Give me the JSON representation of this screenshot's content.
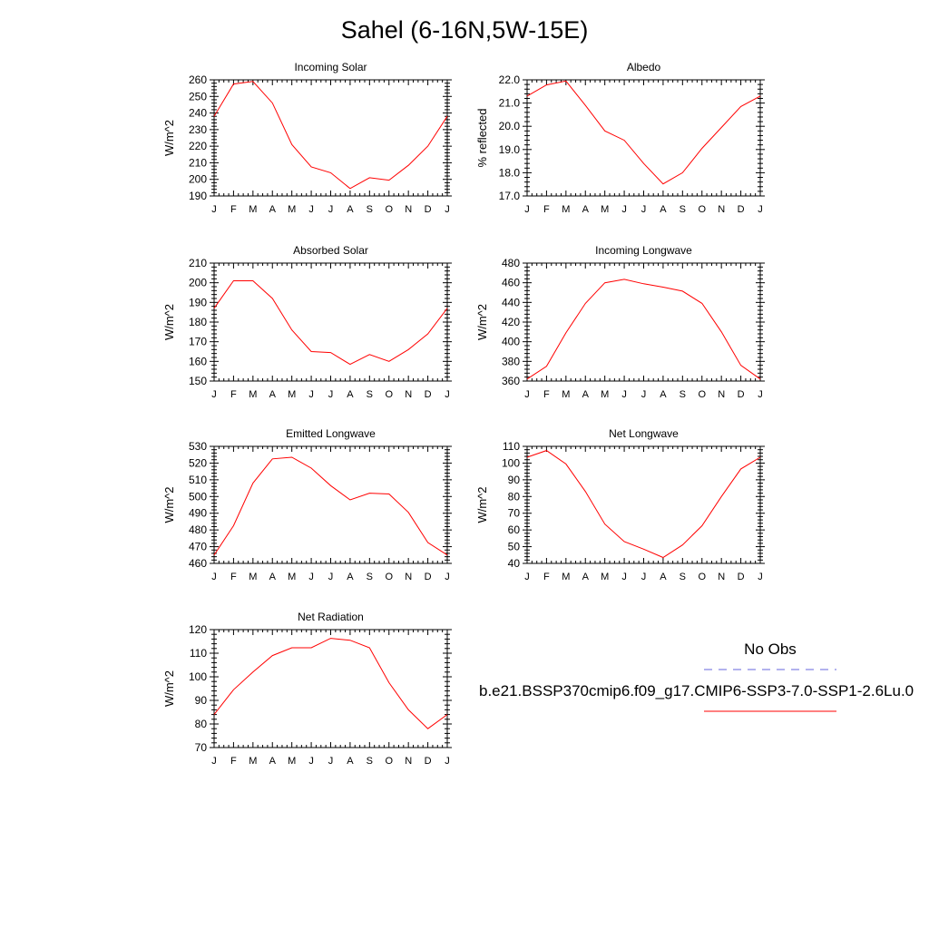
{
  "title": "Sahel (6-16N,5W-15E)",
  "legend": {
    "obs_label": "No Obs",
    "obs_color": "#6666dd",
    "model_label": "b.e21.BSSP370cmip6.f09_g17.CMIP6-SSP3-7.0-SSP1-2.6Lu.0",
    "model_color": "#ff0000"
  },
  "chart_data": [
    {
      "type": "line",
      "title": "Incoming Solar",
      "ylabel": "W/m^2",
      "categories": [
        "J",
        "F",
        "M",
        "A",
        "M",
        "J",
        "J",
        "A",
        "S",
        "O",
        "N",
        "D",
        "J"
      ],
      "ylim": [
        190,
        260
      ],
      "yticks": [
        "190",
        "200",
        "210",
        "220",
        "230",
        "240",
        "250",
        "260"
      ],
      "series": [
        {
          "values": [
            238,
            257.5,
            259,
            246,
            221,
            207.5,
            204,
            194.5,
            201,
            199.5,
            208.5,
            220,
            238
          ]
        }
      ]
    },
    {
      "type": "line",
      "title": "Albedo",
      "ylabel": "% reflected",
      "categories": [
        "J",
        "F",
        "M",
        "A",
        "M",
        "J",
        "J",
        "A",
        "S",
        "O",
        "N",
        "D",
        "J"
      ],
      "ylim": [
        17.0,
        22.0
      ],
      "yticks": [
        "17.0",
        "18.0",
        "19.0",
        "20.0",
        "21.0",
        "22.0"
      ],
      "series": [
        {
          "values": [
            21.3,
            21.78,
            21.95,
            20.9,
            19.8,
            19.4,
            18.4,
            17.52,
            18.0,
            19.05,
            19.95,
            20.85,
            21.3
          ]
        }
      ]
    },
    {
      "type": "line",
      "title": "Absorbed Solar",
      "ylabel": "W/m^2",
      "categories": [
        "J",
        "F",
        "M",
        "A",
        "M",
        "J",
        "J",
        "A",
        "S",
        "O",
        "N",
        "D",
        "J"
      ],
      "ylim": [
        150,
        210
      ],
      "yticks": [
        "150",
        "160",
        "170",
        "180",
        "190",
        "200",
        "210"
      ],
      "series": [
        {
          "values": [
            187,
            201,
            201,
            192,
            176,
            165,
            164.5,
            158.5,
            163.5,
            160,
            166,
            174,
            187
          ]
        }
      ]
    },
    {
      "type": "line",
      "title": "Incoming Longwave",
      "ylabel": "W/m^2",
      "categories": [
        "J",
        "F",
        "M",
        "A",
        "M",
        "J",
        "J",
        "A",
        "S",
        "O",
        "N",
        "D",
        "J"
      ],
      "ylim": [
        360,
        480
      ],
      "yticks": [
        "360",
        "380",
        "400",
        "420",
        "440",
        "460",
        "480"
      ],
      "series": [
        {
          "values": [
            362,
            375,
            409,
            439,
            460,
            463.5,
            459,
            455.5,
            451.5,
            439,
            410,
            376,
            362
          ]
        }
      ]
    },
    {
      "type": "line",
      "title": "Emitted Longwave",
      "ylabel": "W/m^2",
      "categories": [
        "J",
        "F",
        "M",
        "A",
        "M",
        "J",
        "J",
        "A",
        "S",
        "O",
        "N",
        "D",
        "J"
      ],
      "ylim": [
        460,
        530
      ],
      "yticks": [
        "460",
        "470",
        "480",
        "490",
        "500",
        "510",
        "520",
        "530"
      ],
      "series": [
        {
          "values": [
            465,
            482.5,
            508,
            522.5,
            523.5,
            517,
            506.5,
            498,
            502,
            501.5,
            490.5,
            472.5,
            465
          ]
        }
      ]
    },
    {
      "type": "line",
      "title": "Net Longwave",
      "ylabel": "W/m^2",
      "categories": [
        "J",
        "F",
        "M",
        "A",
        "M",
        "J",
        "J",
        "A",
        "S",
        "O",
        "N",
        "D",
        "J"
      ],
      "ylim": [
        40,
        110
      ],
      "yticks": [
        "40",
        "50",
        "60",
        "70",
        "80",
        "90",
        "100",
        "110"
      ],
      "series": [
        {
          "values": [
            103.5,
            107.5,
            99.5,
            83,
            63.5,
            53,
            48.5,
            43.5,
            51,
            62.5,
            80,
            96.5,
            103.5
          ]
        }
      ]
    },
    {
      "type": "line",
      "title": "Net Radiation",
      "ylabel": "W/m^2",
      "categories": [
        "J",
        "F",
        "M",
        "A",
        "M",
        "J",
        "J",
        "A",
        "S",
        "O",
        "N",
        "D",
        "J"
      ],
      "ylim": [
        70,
        120
      ],
      "yticks": [
        "70",
        "80",
        "90",
        "100",
        "110",
        "120"
      ],
      "series": [
        {
          "values": [
            84,
            94.5,
            102,
            109,
            112.3,
            112.3,
            116.3,
            115.5,
            112.3,
            97.5,
            86,
            78,
            84
          ]
        }
      ]
    }
  ]
}
